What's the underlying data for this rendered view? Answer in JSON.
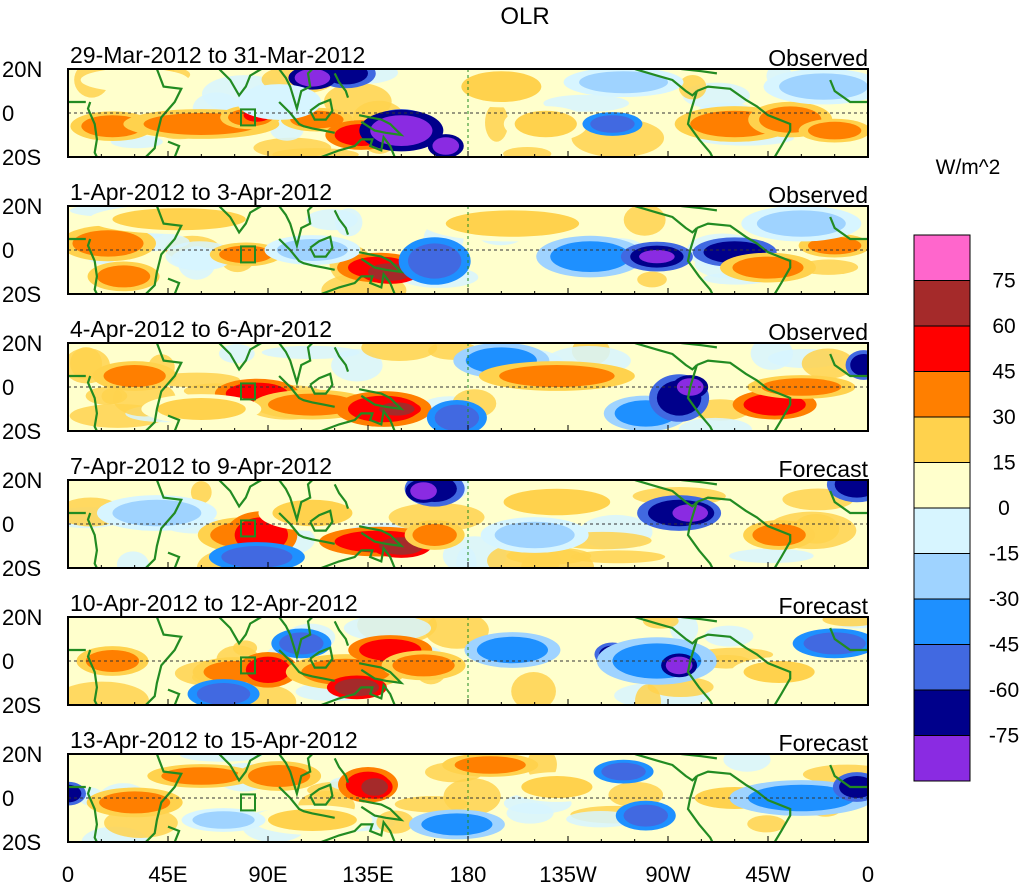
{
  "title": "OLR",
  "panels": [
    {
      "date_range": "29-Mar-2012 to 31-Mar-2012",
      "status": "Observed"
    },
    {
      "date_range": "1-Apr-2012 to 3-Apr-2012",
      "status": "Observed"
    },
    {
      "date_range": "4-Apr-2012 to 6-Apr-2012",
      "status": "Observed"
    },
    {
      "date_range": "7-Apr-2012 to 9-Apr-2012",
      "status": "Forecast"
    },
    {
      "date_range": "10-Apr-2012 to 12-Apr-2012",
      "status": "Forecast"
    },
    {
      "date_range": "13-Apr-2012 to 15-Apr-2012",
      "status": "Forecast"
    }
  ],
  "lat_labels": [
    "20N",
    "0",
    "20S"
  ],
  "lon_labels": [
    "0",
    "45E",
    "90E",
    "135E",
    "180",
    "135W",
    "90W",
    "45W",
    "0"
  ],
  "colorbar": {
    "unit": "W/m^2",
    "levels": [
      "75",
      "60",
      "45",
      "30",
      "15",
      "0",
      "-15",
      "-30",
      "-45",
      "-60",
      "-75"
    ],
    "colors": [
      "#ff66cc",
      "#a52a2a",
      "#ff0000",
      "#ff7f00",
      "#ffd24d",
      "#ffffcc",
      "#d7f5ff",
      "#9fd3ff",
      "#1e90ff",
      "#4169e1",
      "#00008b",
      "#8a2be2"
    ]
  },
  "colors": {
    "coast": "#228b22",
    "frame": "#000000"
  },
  "marker": {
    "label": "region-box",
    "lon": 81,
    "lat": -2
  }
}
